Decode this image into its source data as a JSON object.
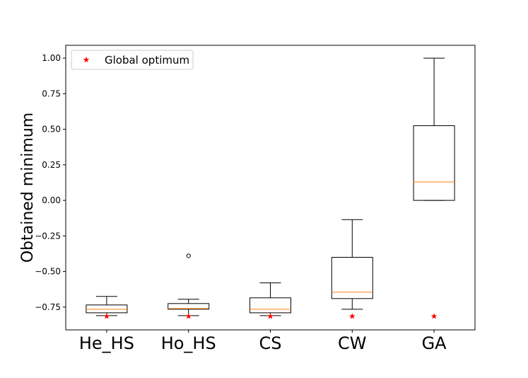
{
  "chart_data": {
    "type": "box",
    "title": "",
    "xlabel": "",
    "ylabel": "Obtained minimum",
    "ylim": [
      -0.91,
      1.09
    ],
    "yticks": [
      1.0,
      0.75,
      0.5,
      0.25,
      0.0,
      -0.25,
      -0.5,
      -0.75
    ],
    "ytick_labels": [
      "1.00",
      "0.75",
      "0.50",
      "0.25",
      "0.00",
      "−0.25",
      "−0.50",
      "−0.75"
    ],
    "categories": [
      "He_HS",
      "Ho_HS",
      "CS",
      "CW",
      "GA"
    ],
    "boxes": [
      {
        "name": "He_HS",
        "whislo": -0.81,
        "q1": -0.79,
        "med": -0.765,
        "q3": -0.735,
        "whishi": -0.675,
        "fliers": []
      },
      {
        "name": "Ho_HS",
        "whislo": -0.81,
        "q1": -0.765,
        "med": -0.76,
        "q3": -0.725,
        "whishi": -0.695,
        "fliers": [
          -0.39
        ]
      },
      {
        "name": "CS",
        "whislo": -0.81,
        "q1": -0.79,
        "med": -0.765,
        "q3": -0.685,
        "whishi": -0.58,
        "fliers": []
      },
      {
        "name": "CW",
        "whislo": -0.765,
        "q1": -0.69,
        "med": -0.645,
        "q3": -0.4,
        "whishi": -0.135,
        "fliers": []
      },
      {
        "name": "GA",
        "whislo": 0.0,
        "q1": 0.0,
        "med": 0.13,
        "q3": 0.525,
        "whishi": 1.0,
        "fliers": []
      }
    ],
    "markers": {
      "name": "Global optimum",
      "symbol": "star",
      "color": "#ff0000",
      "values": [
        -0.815,
        -0.815,
        -0.815,
        -0.815,
        -0.815
      ]
    },
    "legend": {
      "position": "top-left",
      "label": "Global optimum"
    },
    "median_color": "#ff7f0e",
    "box_color": "#000000",
    "grid": false
  }
}
